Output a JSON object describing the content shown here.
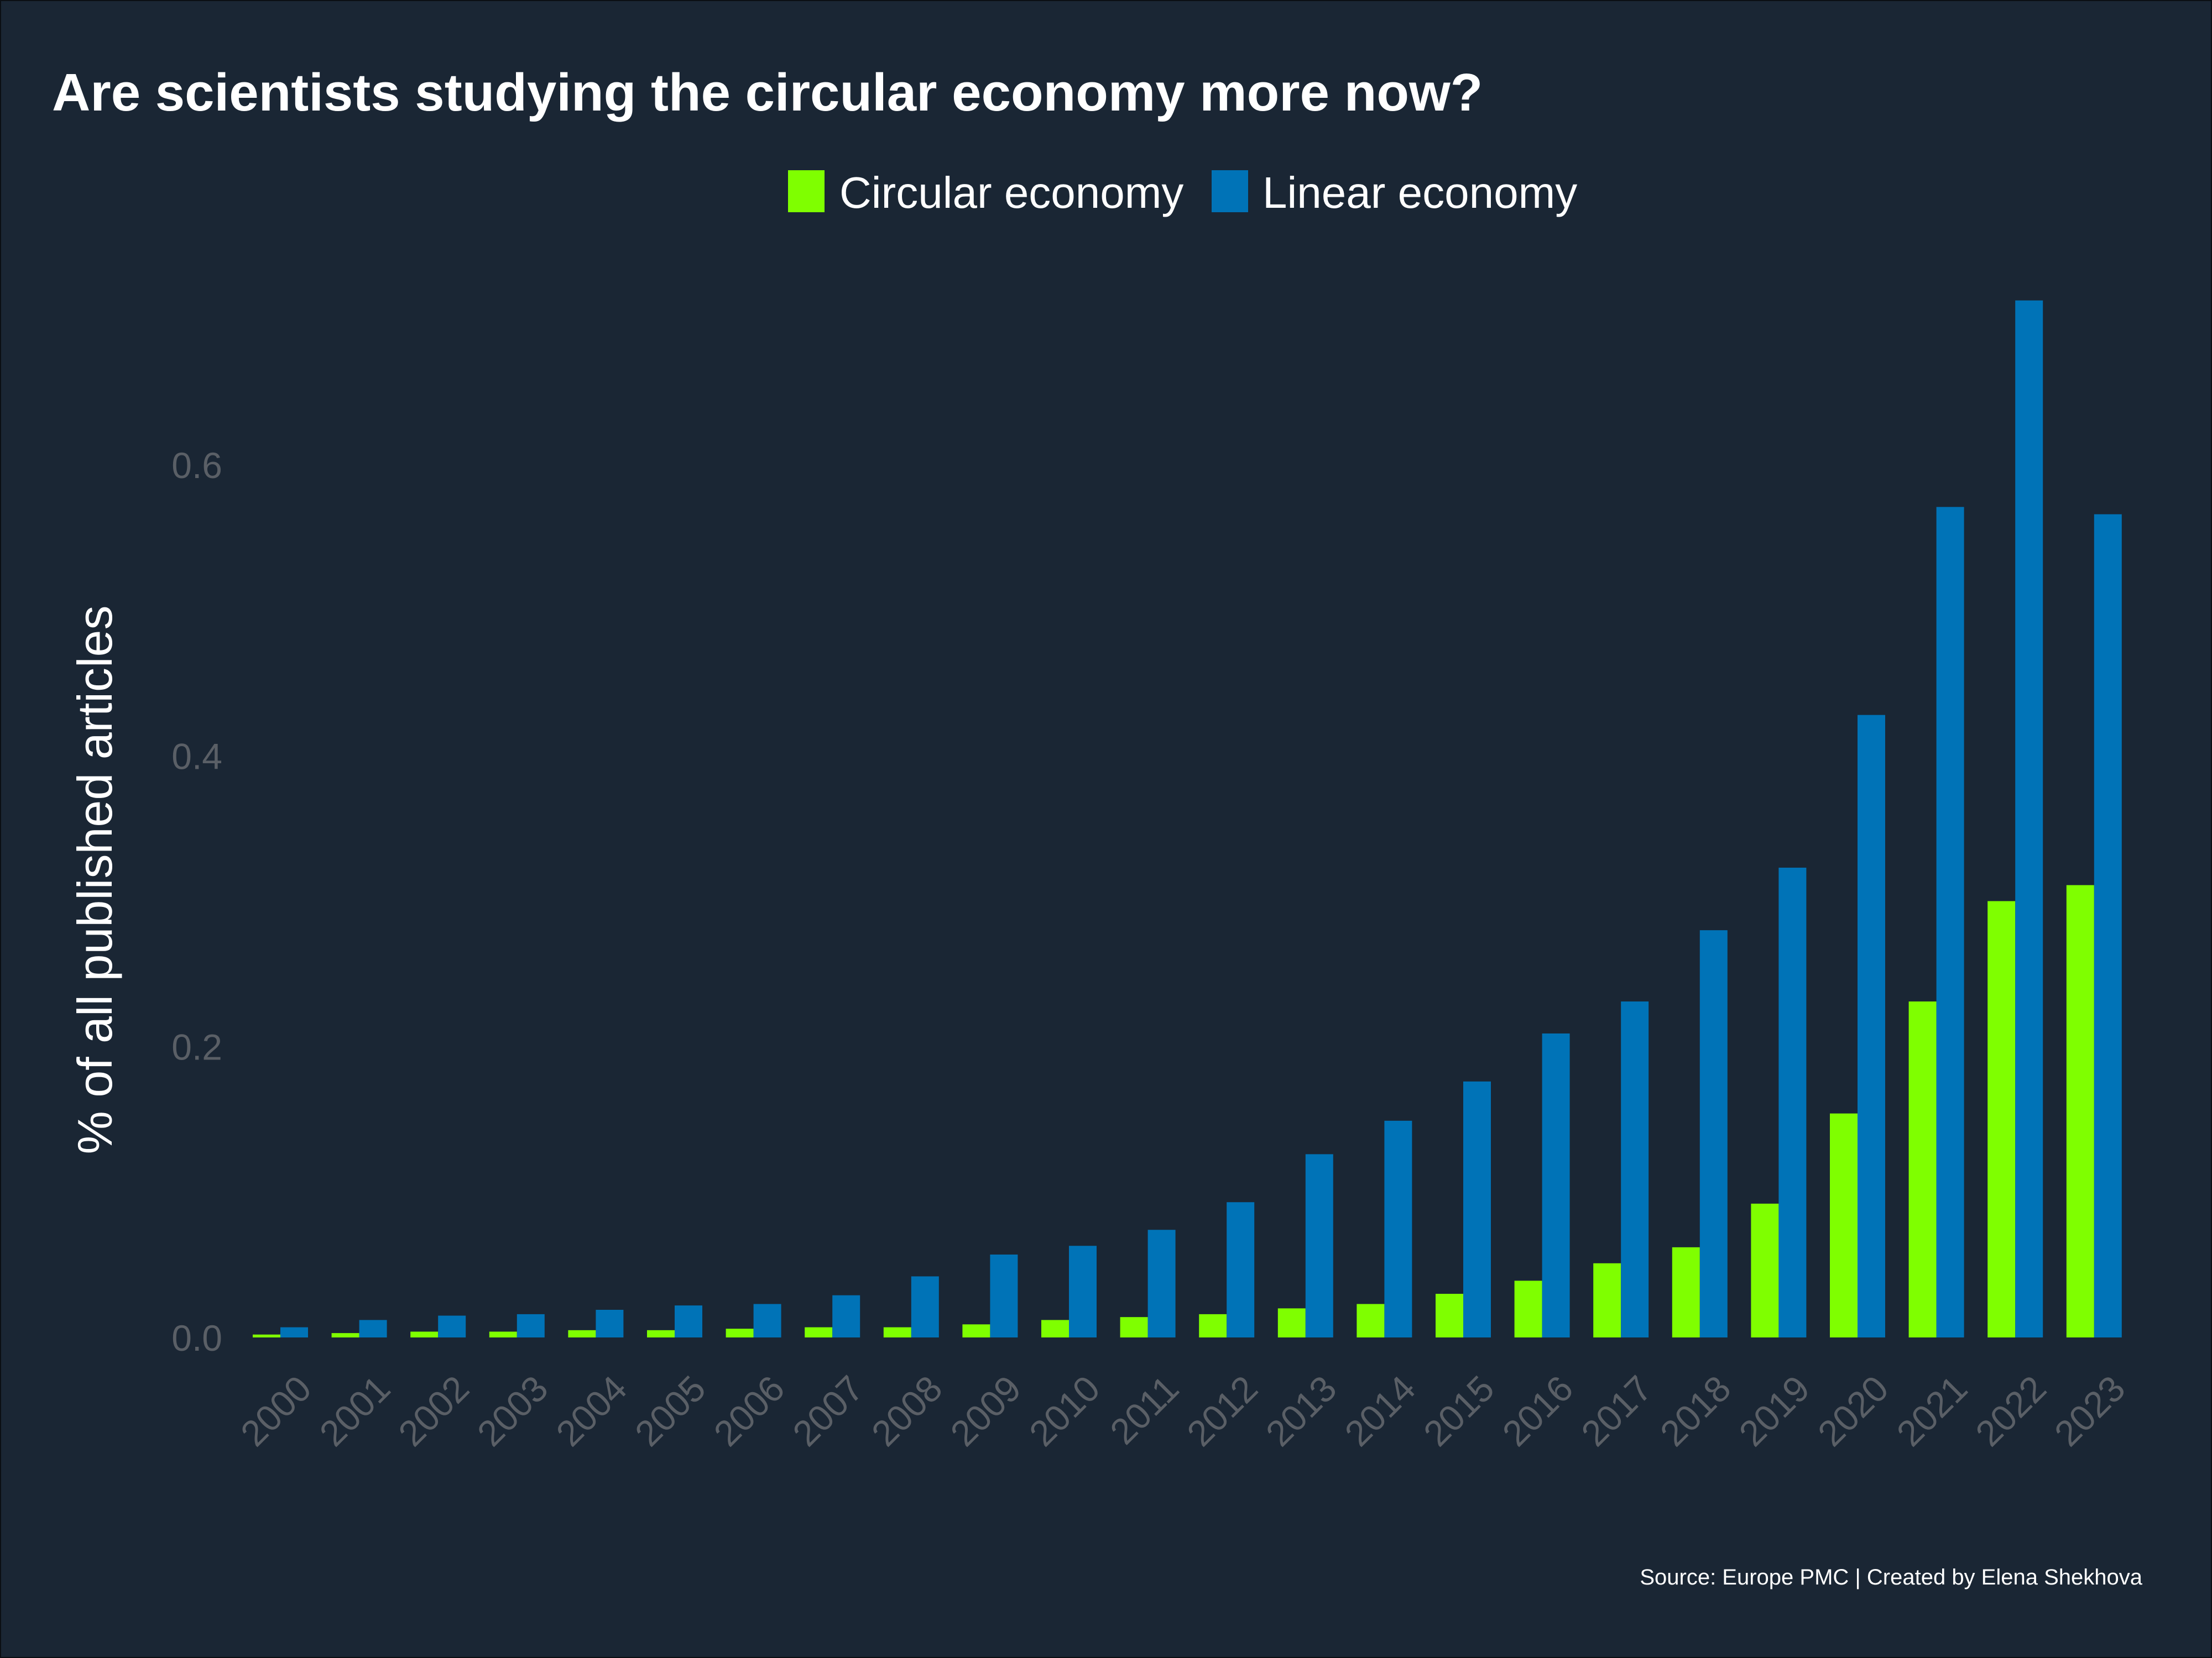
{
  "chart_data": {
    "type": "bar",
    "title": "Are scientists studying the circular economy more now?",
    "xlabel": "",
    "ylabel": "% of all published articles",
    "caption": "Source: Europe PMC | Created by Elena Shekhova",
    "categories": [
      "2000",
      "2001",
      "2002",
      "2003",
      "2004",
      "2005",
      "2006",
      "2007",
      "2008",
      "2009",
      "2010",
      "2011",
      "2012",
      "2013",
      "2014",
      "2015",
      "2016",
      "2017",
      "2018",
      "2019",
      "2020",
      "2021",
      "2022",
      "2023"
    ],
    "series": [
      {
        "name": "Circular economy",
        "color": "#7fff00",
        "values": [
          0.002,
          0.003,
          0.004,
          0.004,
          0.005,
          0.005,
          0.006,
          0.007,
          0.007,
          0.009,
          0.012,
          0.014,
          0.016,
          0.02,
          0.023,
          0.03,
          0.039,
          0.051,
          0.062,
          0.092,
          0.154,
          0.231,
          0.3,
          0.311
        ]
      },
      {
        "name": "Linear economy",
        "color": "#0073b7",
        "values": [
          0.007,
          0.012,
          0.015,
          0.016,
          0.019,
          0.022,
          0.023,
          0.029,
          0.042,
          0.057,
          0.063,
          0.074,
          0.093,
          0.126,
          0.149,
          0.176,
          0.209,
          0.231,
          0.28,
          0.323,
          0.428,
          0.571,
          0.713,
          0.566
        ]
      }
    ],
    "yticks": [
      "0.0",
      "0.2",
      "0.4",
      "0.6"
    ],
    "ytick_values": [
      0,
      0.2,
      0.4,
      0.6
    ],
    "ylim": [
      0,
      0.75
    ],
    "grid": false,
    "legend_position": "top-center"
  }
}
